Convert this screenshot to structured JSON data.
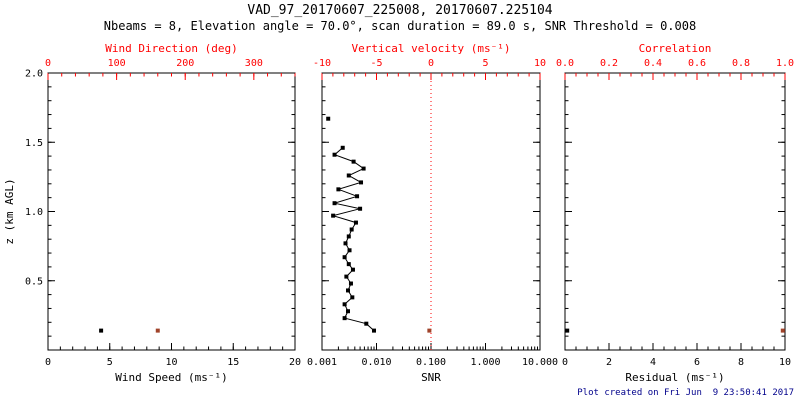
{
  "header": {
    "title": "VAD_97_20170607_225008, 20170607.225104",
    "subtitle": "Nbeams = 8, Elevation angle = 70.0°, scan duration = 89.0 s, SNR Threshold = 0.008"
  },
  "footer": {
    "created": "Plot created on Fri Jun  9 23:50:41 2017"
  },
  "colors": {
    "axis_red": "#ff0000",
    "marker_red": "#a0432a",
    "black": "#000000",
    "footer_blue": "#00008b",
    "background": "#ffffff"
  },
  "chart_data": [
    {
      "type": "scatter",
      "name": "wind-panel",
      "y_axis": {
        "label": "z (km AGL)",
        "range": [
          0,
          2
        ],
        "ticks": [
          0.5,
          1.0,
          1.5,
          2.0
        ],
        "tick_labels": [
          "0.5",
          "1.0",
          "1.5",
          "2.0"
        ],
        "minor_step": 0.1
      },
      "bottom_axis": {
        "label": "Wind Speed (ms⁻¹)",
        "range": [
          0,
          20
        ],
        "ticks": [
          0,
          5,
          10,
          15,
          20
        ],
        "tick_labels": [
          "0",
          "5",
          "10",
          "15",
          "20"
        ],
        "minor_step": 1
      },
      "top_axis": {
        "label": "Wind Direction (deg)",
        "range": [
          0,
          360
        ],
        "ticks": [
          0,
          100,
          200,
          300
        ],
        "tick_labels": [
          "0",
          "100",
          "200",
          "300"
        ],
        "minor_step": 20,
        "color": "red"
      },
      "series": [
        {
          "name": "wind-speed",
          "axis": "bottom",
          "color": "black",
          "marker": "square",
          "line": false,
          "points": [
            {
              "x": 4.3,
              "z": 0.14
            }
          ]
        },
        {
          "name": "wind-direction",
          "axis": "top",
          "color": "red",
          "marker": "square",
          "line": false,
          "points": [
            {
              "x": 160,
              "z": 0.14
            }
          ]
        }
      ]
    },
    {
      "type": "line",
      "name": "snr-panel",
      "y_axis": {
        "label": "",
        "range": [
          0,
          2
        ],
        "ticks": [
          0.5,
          1.0,
          1.5,
          2.0
        ],
        "tick_labels": [
          "0.5",
          "1.0",
          "1.5",
          "2.0"
        ],
        "minor_step": 0.1
      },
      "bottom_axis": {
        "label": "SNR",
        "scale": "log",
        "range": [
          0.001,
          10
        ],
        "ticks": [
          0.001,
          0.01,
          0.1,
          1,
          10
        ],
        "tick_labels": [
          "0.001",
          "0.010",
          "0.100",
          "1.000",
          "10.000"
        ]
      },
      "top_axis": {
        "label": "Vertical velocity (ms⁻¹)",
        "range": [
          -10,
          10
        ],
        "ticks": [
          -10,
          -5,
          0,
          5,
          10
        ],
        "tick_labels": [
          "-10",
          "-5",
          "0",
          "5",
          "10"
        ],
        "minor_step": 1,
        "color": "red"
      },
      "reference_line": {
        "axis": "top",
        "value": 0,
        "style": "dotted",
        "color": "red"
      },
      "series": [
        {
          "name": "snr-profile",
          "axis": "bottom",
          "color": "black",
          "marker": "square",
          "line": true,
          "points": [
            {
              "x": 0.009,
              "z": 0.14
            },
            {
              "x": 0.0065,
              "z": 0.19
            },
            {
              "x": 0.0026,
              "z": 0.23
            },
            {
              "x": 0.003,
              "z": 0.28
            },
            {
              "x": 0.0026,
              "z": 0.33
            },
            {
              "x": 0.0036,
              "z": 0.38
            },
            {
              "x": 0.003,
              "z": 0.43
            },
            {
              "x": 0.0034,
              "z": 0.48
            },
            {
              "x": 0.0028,
              "z": 0.53
            },
            {
              "x": 0.0037,
              "z": 0.58
            },
            {
              "x": 0.0031,
              "z": 0.62
            },
            {
              "x": 0.0026,
              "z": 0.67
            },
            {
              "x": 0.0032,
              "z": 0.72
            },
            {
              "x": 0.0027,
              "z": 0.77
            },
            {
              "x": 0.0031,
              "z": 0.82
            },
            {
              "x": 0.0035,
              "z": 0.87
            },
            {
              "x": 0.0042,
              "z": 0.92
            },
            {
              "x": 0.0016,
              "z": 0.97
            },
            {
              "x": 0.005,
              "z": 1.02
            },
            {
              "x": 0.0017,
              "z": 1.06
            },
            {
              "x": 0.0044,
              "z": 1.11
            },
            {
              "x": 0.002,
              "z": 1.16
            },
            {
              "x": 0.0052,
              "z": 1.21
            },
            {
              "x": 0.0031,
              "z": 1.26
            },
            {
              "x": 0.0058,
              "z": 1.31
            },
            {
              "x": 0.0038,
              "z": 1.36
            },
            {
              "x": 0.0017,
              "z": 1.41
            },
            {
              "x": 0.0024,
              "z": 1.46
            }
          ]
        },
        {
          "name": "snr-isolated-point",
          "axis": "bottom",
          "color": "black",
          "marker": "square",
          "line": false,
          "points": [
            {
              "x": 0.0013,
              "z": 1.67
            }
          ]
        },
        {
          "name": "vertical-velocity",
          "axis": "top",
          "color": "red",
          "marker": "square",
          "line": false,
          "points": [
            {
              "x": -0.15,
              "z": 0.14
            }
          ]
        }
      ]
    },
    {
      "type": "scatter",
      "name": "residual-panel",
      "y_axis": {
        "label": "",
        "range": [
          0,
          2
        ],
        "ticks": [
          0.5,
          1.0,
          1.5,
          2.0
        ],
        "tick_labels": [
          "0.5",
          "1.0",
          "1.5",
          "2.0"
        ],
        "minor_step": 0.1
      },
      "bottom_axis": {
        "label": "Residual (ms⁻¹)",
        "range": [
          0,
          10
        ],
        "ticks": [
          0,
          2,
          4,
          6,
          8,
          10
        ],
        "tick_labels": [
          "0",
          "2",
          "4",
          "6",
          "8",
          "10"
        ],
        "minor_step": 0.5
      },
      "top_axis": {
        "label": "Correlation",
        "range": [
          0,
          1
        ],
        "ticks": [
          0,
          0.2,
          0.4,
          0.6,
          0.8,
          1.0
        ],
        "tick_labels": [
          "0.0",
          "0.2",
          "0.4",
          "0.6",
          "0.8",
          "1.0"
        ],
        "minor_step": 0.05,
        "color": "red"
      },
      "series": [
        {
          "name": "residual",
          "axis": "bottom",
          "color": "black",
          "marker": "square",
          "line": false,
          "points": [
            {
              "x": 0.1,
              "z": 0.14
            }
          ]
        },
        {
          "name": "correlation",
          "axis": "top",
          "color": "red",
          "marker": "square",
          "line": false,
          "points": [
            {
              "x": 0.99,
              "z": 0.14
            }
          ]
        }
      ]
    }
  ]
}
